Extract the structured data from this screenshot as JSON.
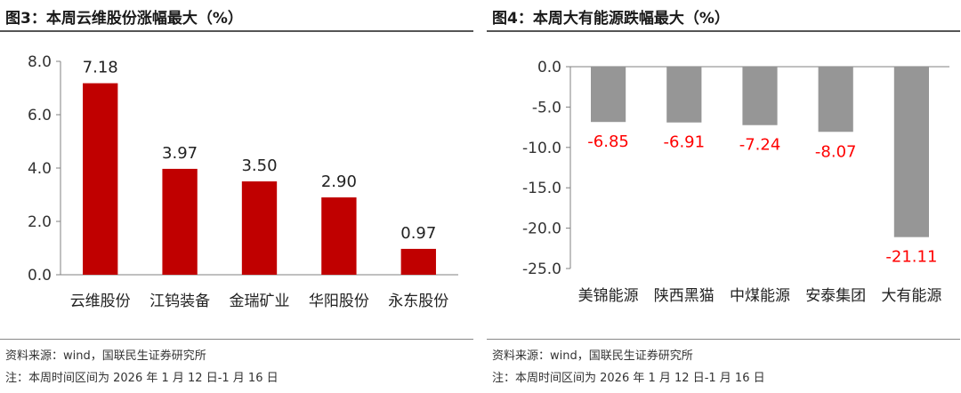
{
  "chart_data": [
    {
      "type": "bar",
      "title": "图3：本周云维股份涨幅最大（%）",
      "categories": [
        "云维股份",
        "江钨装备",
        "金瑞矿业",
        "华阳股份",
        "永东股份"
      ],
      "values": [
        7.18,
        3.97,
        3.5,
        2.9,
        0.97
      ],
      "value_labels": [
        "7.18",
        "3.97",
        "3.50",
        "2.90",
        "0.97"
      ],
      "yticks": [
        "0.0",
        "2.0",
        "4.0",
        "6.0",
        "8.0"
      ],
      "ylim": [
        0,
        8
      ],
      "bar_color": "#C00000",
      "label_color": "#222222",
      "source": "资料来源：wind，国联民生证券研究所",
      "note": "注：本周时间区间为 2026 年 1 月 12 日-1 月 16 日"
    },
    {
      "type": "bar",
      "title": "图4：本周大有能源跌幅最大（%）",
      "categories": [
        "美锦能源",
        "陕西黑猫",
        "中煤能源",
        "安泰集团",
        "大有能源"
      ],
      "values": [
        -6.85,
        -6.91,
        -7.24,
        -8.07,
        -21.11
      ],
      "value_labels": [
        "-6.85",
        "-6.91",
        "-7.24",
        "-8.07",
        "-21.11"
      ],
      "yticks": [
        "0.0",
        "-5.0",
        "-10.0",
        "-15.0",
        "-20.0",
        "-25.0"
      ],
      "ylim": [
        -25,
        0
      ],
      "bar_color": "#969696",
      "label_color": "#FF0000",
      "source": "资料来源：wind，国联民生证券研究所",
      "note": "注：本周时间区间为 2026 年 1 月 12 日-1 月 16 日"
    }
  ]
}
